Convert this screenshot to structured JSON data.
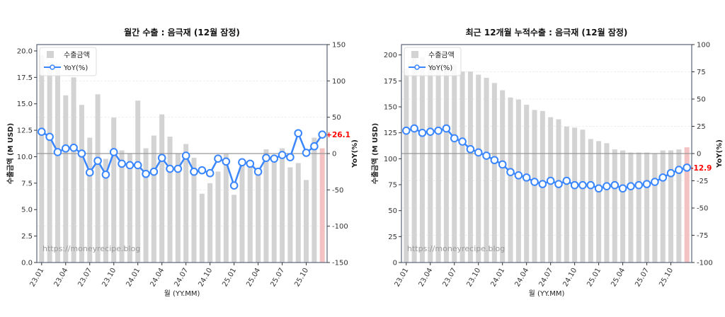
{
  "charts": [
    {
      "id": "monthly",
      "title": "월간 수출 : 음극재 (12월 잠정)",
      "xlabel": "월 (YY.MM)",
      "ylabel": "수출금액 (M USD)",
      "y2label": "YoY(%)",
      "watermark": "https://moneyrecipe.blog",
      "legend": [
        "수출금액",
        "YoY(%)"
      ],
      "last_label": "+26.1"
    },
    {
      "id": "rolling12",
      "title": "최근 12개월 누적수출 : 음극재 (12월 잠정)",
      "xlabel": "월 (YY.MM)",
      "ylabel": "수출금액 (M USD)",
      "y2label": "YoY(%)",
      "watermark": "https://moneyrecipe.blog",
      "legend": [
        "수출금액",
        "YoY(%)"
      ],
      "last_label": "-12.9"
    }
  ],
  "colors": {
    "bar": "#d3d3d3",
    "bar_last": "#f4c2c2",
    "line": "#3a86ff",
    "label": "#ff0000",
    "zero": "#999999"
  },
  "chart_data": [
    {
      "type": "bar",
      "title": "월간 수출 : 음극재 (12월 잠정)",
      "xlabel": "월 (YY.MM)",
      "ylabel": "수출금액 (M USD)",
      "y2label": "YoY(%)",
      "ylim": [
        0,
        20.6
      ],
      "y2lim": [
        -150,
        150
      ],
      "yticks": [
        0.0,
        2.5,
        5.0,
        7.5,
        10.0,
        12.5,
        15.0,
        17.5,
        20.0
      ],
      "y2ticks": [
        -150,
        -100,
        -50,
        0,
        50,
        100,
        150
      ],
      "xtick_labels": [
        "23.01",
        "23.04",
        "23.07",
        "23.10",
        "24.01",
        "24.04",
        "24.07",
        "24.10",
        "25.01",
        "25.04",
        "25.07",
        "25.10"
      ],
      "legend": [
        "수출금액",
        "YoY(%)"
      ],
      "categories": [
        "23.01",
        "23.02",
        "23.03",
        "23.04",
        "23.05",
        "23.06",
        "23.07",
        "23.08",
        "23.09",
        "23.10",
        "23.11",
        "23.12",
        "24.01",
        "24.02",
        "24.03",
        "24.04",
        "24.05",
        "24.06",
        "24.07",
        "24.08",
        "24.09",
        "24.10",
        "24.11",
        "24.12",
        "25.01",
        "25.02",
        "25.03",
        "25.04",
        "25.05",
        "25.06",
        "25.07",
        "25.08",
        "25.09",
        "25.10",
        "25.11",
        "25.12"
      ],
      "series": [
        {
          "name": "수출금액",
          "type": "bar",
          "axis": "left",
          "values": [
            19.6,
            18.9,
            18.7,
            15.8,
            17.5,
            14.9,
            11.8,
            15.9,
            9.8,
            13.7,
            10.6,
            10.3,
            15.3,
            10.8,
            12.0,
            14.0,
            11.9,
            10.3,
            11.2,
            9.9,
            6.5,
            7.5,
            8.6,
            10.3,
            6.4,
            9.2,
            9.4,
            8.9,
            10.7,
            9.6,
            10.8,
            9.0,
            9.4,
            7.8,
            11.8,
            10.8
          ]
        },
        {
          "name": "YoY(%)",
          "type": "line",
          "axis": "right",
          "values": [
            30,
            23,
            2,
            7,
            8,
            0,
            -26,
            -10,
            -29,
            2,
            -14,
            -16,
            -16,
            -28,
            -25,
            -6,
            -21,
            -21,
            -3,
            -25,
            -23,
            -27,
            -7,
            -11,
            -44,
            -12,
            -14,
            -25,
            -6,
            -7,
            -2,
            -5,
            28,
            1,
            10,
            26.1
          ]
        }
      ],
      "annotation": "+26.1",
      "watermark": "https://moneyrecipe.blog"
    },
    {
      "type": "bar",
      "title": "최근 12개월 누적수출 : 음극재 (12월 잠정)",
      "xlabel": "월 (YY.MM)",
      "ylabel": "수출금액 (M USD)",
      "y2label": "YoY(%)",
      "ylim": [
        0,
        210
      ],
      "y2lim": [
        -100,
        100
      ],
      "yticks": [
        0,
        25,
        50,
        75,
        100,
        125,
        150,
        175,
        200
      ],
      "y2ticks": [
        -100,
        -75,
        -50,
        -25,
        0,
        25,
        50,
        75,
        100
      ],
      "xtick_labels": [
        "23.01",
        "23.04",
        "23.07",
        "23.10",
        "24.01",
        "24.04",
        "24.07",
        "24.10",
        "25.01",
        "25.04",
        "25.07",
        "25.10"
      ],
      "legend": [
        "수출금액",
        "YoY(%)"
      ],
      "categories": [
        "23.01",
        "23.02",
        "23.03",
        "23.04",
        "23.05",
        "23.06",
        "23.07",
        "23.08",
        "23.09",
        "23.10",
        "23.11",
        "23.12",
        "24.01",
        "24.02",
        "24.03",
        "24.04",
        "24.05",
        "24.06",
        "24.07",
        "24.08",
        "24.09",
        "24.10",
        "24.11",
        "24.12",
        "25.01",
        "25.02",
        "25.03",
        "25.04",
        "25.05",
        "25.06",
        "25.07",
        "25.08",
        "25.09",
        "25.10",
        "25.11",
        "25.12"
      ],
      "series": [
        {
          "name": "수출금액",
          "type": "bar",
          "axis": "left",
          "values": [
            187,
            197,
            198,
            196,
            197,
            195,
            191,
            184,
            184,
            181,
            178,
            173,
            166,
            159,
            157,
            152,
            147,
            146,
            140,
            138,
            131,
            130,
            128,
            119,
            117,
            115,
            109,
            108,
            106,
            106,
            106,
            105,
            108,
            108,
            109,
            111
          ]
        },
        {
          "name": "YoY(%)",
          "type": "line",
          "axis": "right",
          "values": [
            21,
            23,
            19,
            20,
            21,
            23,
            14,
            11,
            4,
            1,
            -2,
            -6,
            -10,
            -17,
            -20,
            -22,
            -26,
            -28,
            -25,
            -28,
            -25,
            -29,
            -29,
            -29,
            -32,
            -30,
            -29,
            -32,
            -30,
            -29,
            -28,
            -26,
            -22,
            -18,
            -15,
            -12.9
          ]
        }
      ],
      "annotation": "-12.9",
      "watermark": "https://moneyrecipe.blog"
    }
  ]
}
